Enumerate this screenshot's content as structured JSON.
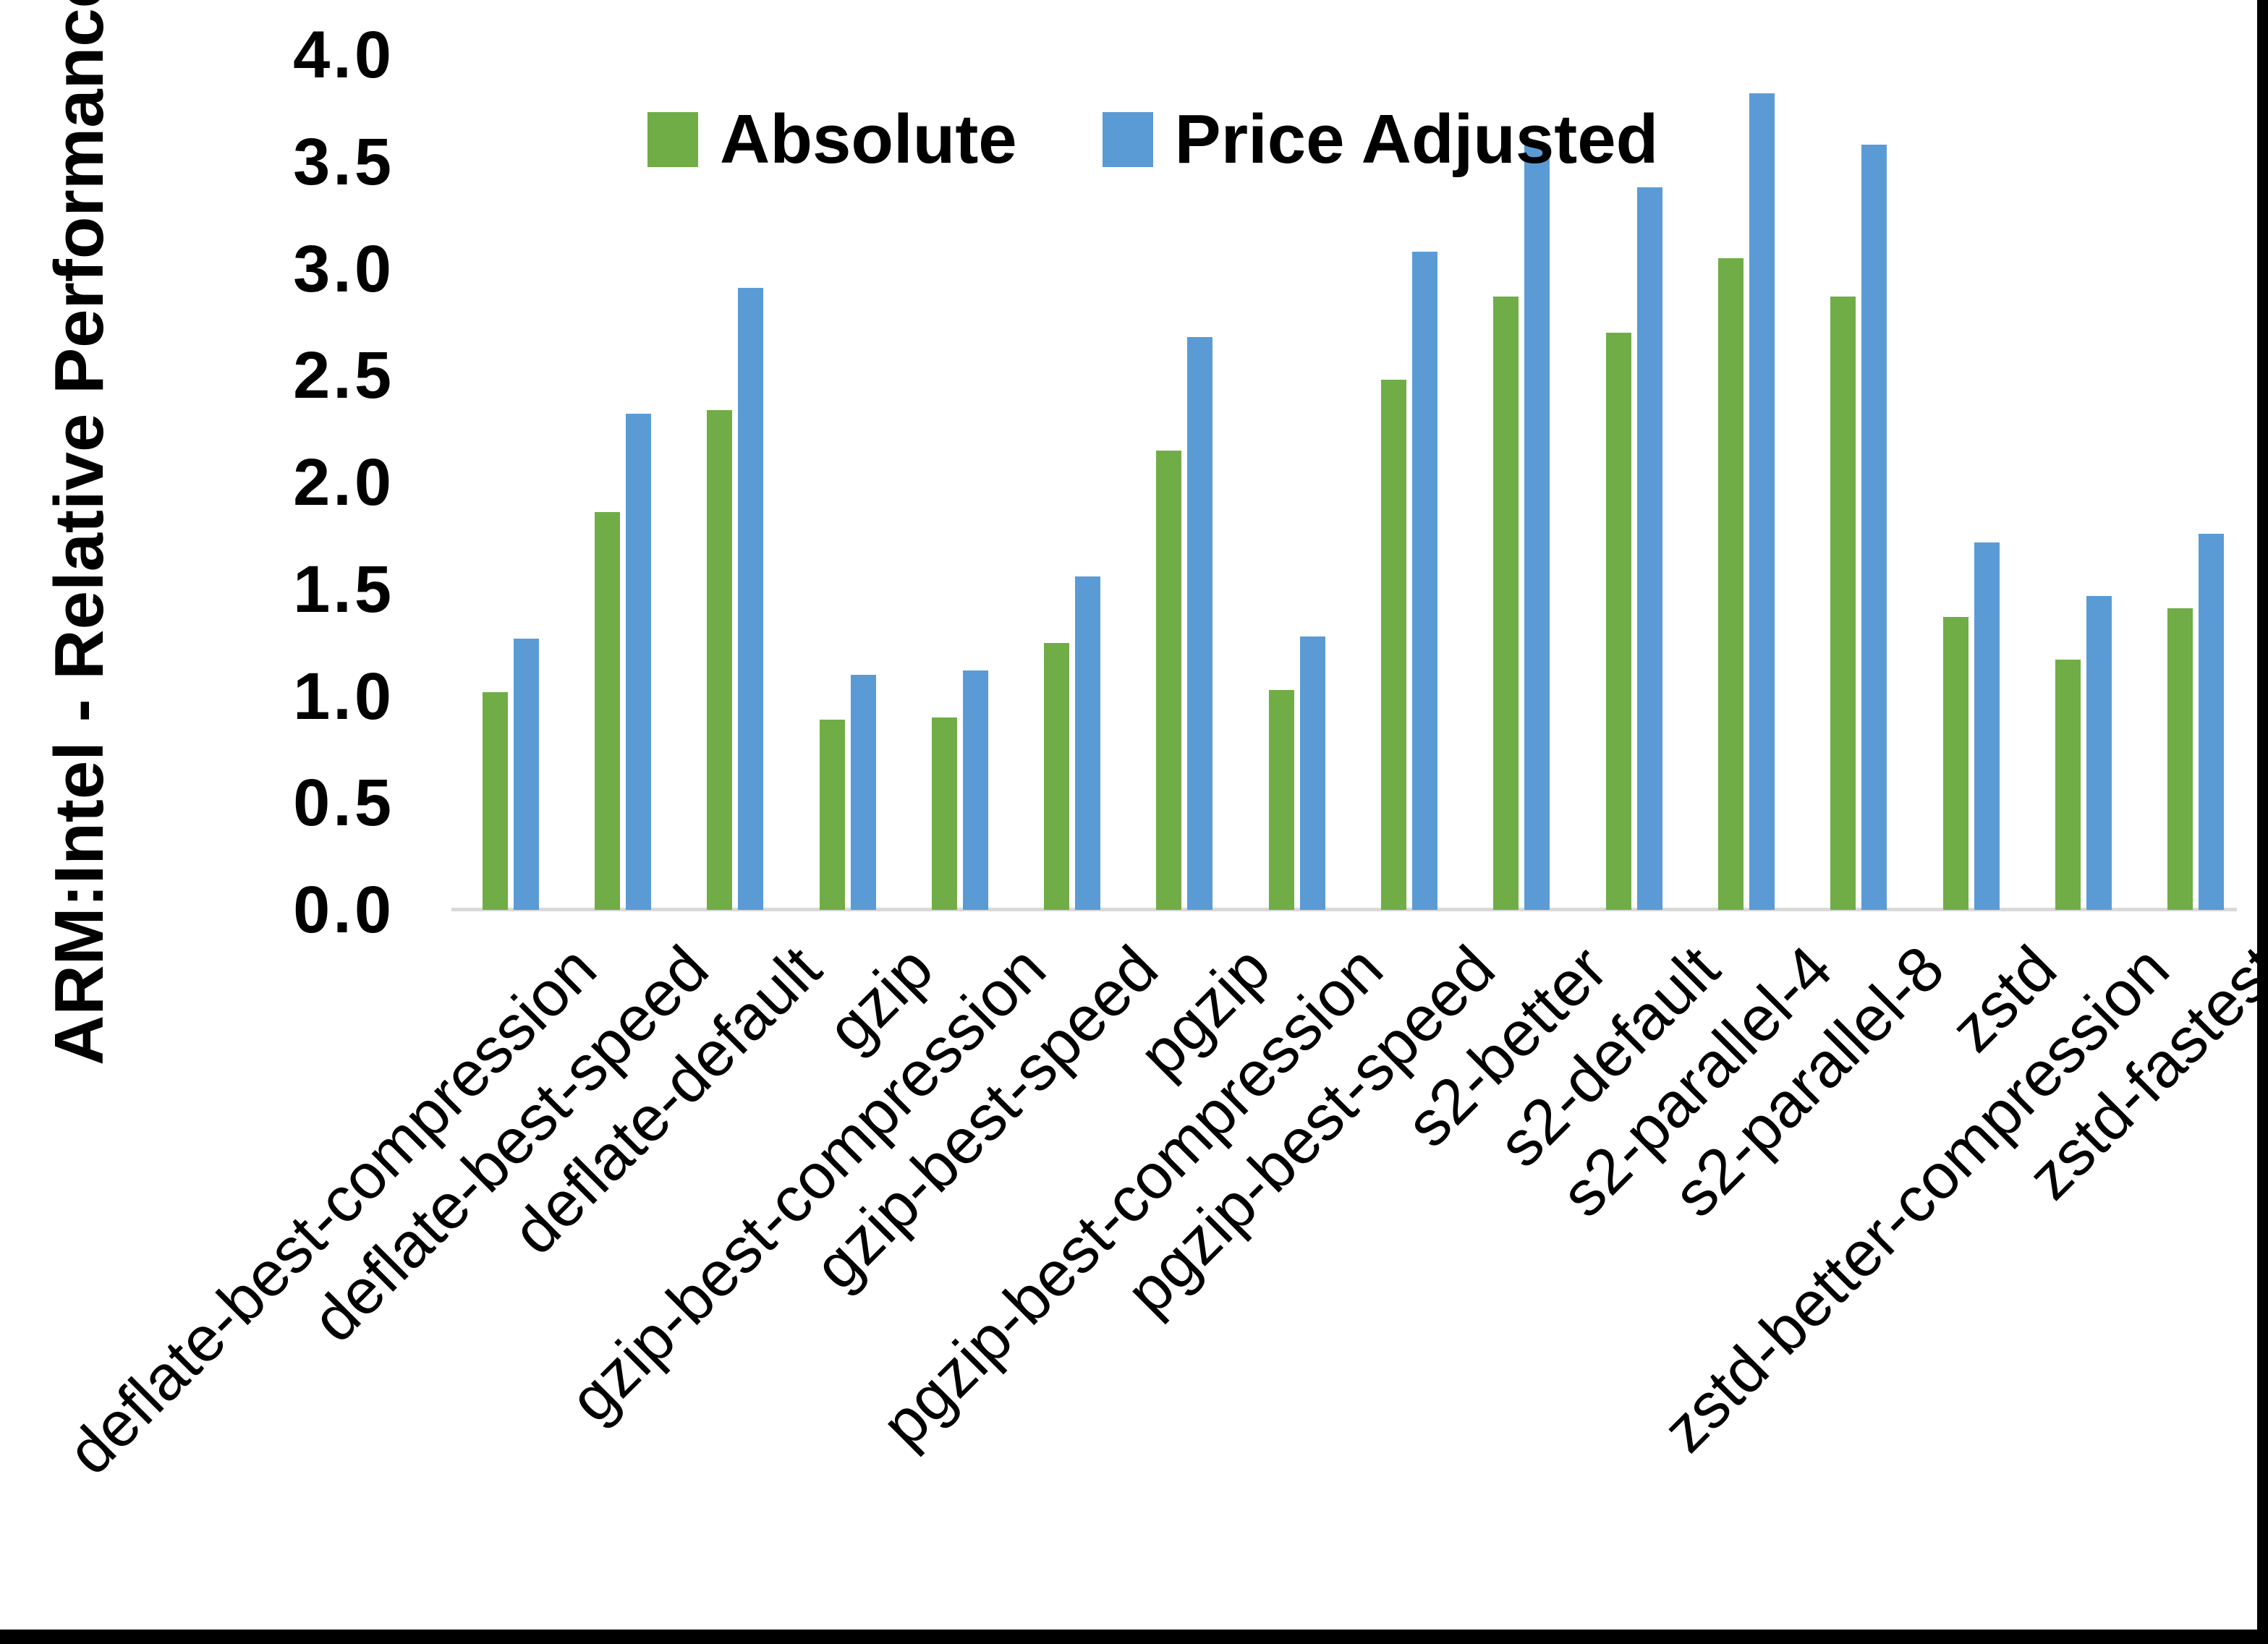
{
  "chart_data": {
    "type": "bar",
    "title": "",
    "ylabel": "ARM:Intel - Relative Performance",
    "xlabel": "",
    "ylim": [
      0,
      4
    ],
    "ytick_step": 0.5,
    "ytick_decimals": 1,
    "grid": false,
    "legend_position": "top-inside",
    "background_color": "#ffffff",
    "axis_line_color": "#d9d9d9",
    "text_color": "#000000",
    "frame_color": "#000000",
    "categories": [
      "deflate-best-compression",
      "deflate-best-speed",
      "deflate-default",
      "gzip",
      "gzip-best-compression",
      "gzip-best-speed",
      "pgzip",
      "pgzip-best-compression",
      "pgzip-best-speed",
      "s2-better",
      "s2-default",
      "s2-parallel-4",
      "s2-parallel-8",
      "zstd",
      "zstd-better-compression",
      "zstd-fastest"
    ],
    "series": [
      {
        "name": "Absolute",
        "color": "#70AD47",
        "values": [
          1.02,
          1.86,
          2.34,
          0.89,
          0.9,
          1.25,
          2.15,
          1.03,
          2.48,
          2.87,
          2.7,
          3.05,
          2.87,
          1.37,
          1.17,
          1.41
        ]
      },
      {
        "name": "Price Adjusted",
        "color": "#5B9BD5",
        "values": [
          1.27,
          2.32,
          2.91,
          1.1,
          1.12,
          1.56,
          2.68,
          1.28,
          3.08,
          3.58,
          3.38,
          3.82,
          3.58,
          1.72,
          1.47,
          1.76
        ]
      }
    ]
  }
}
